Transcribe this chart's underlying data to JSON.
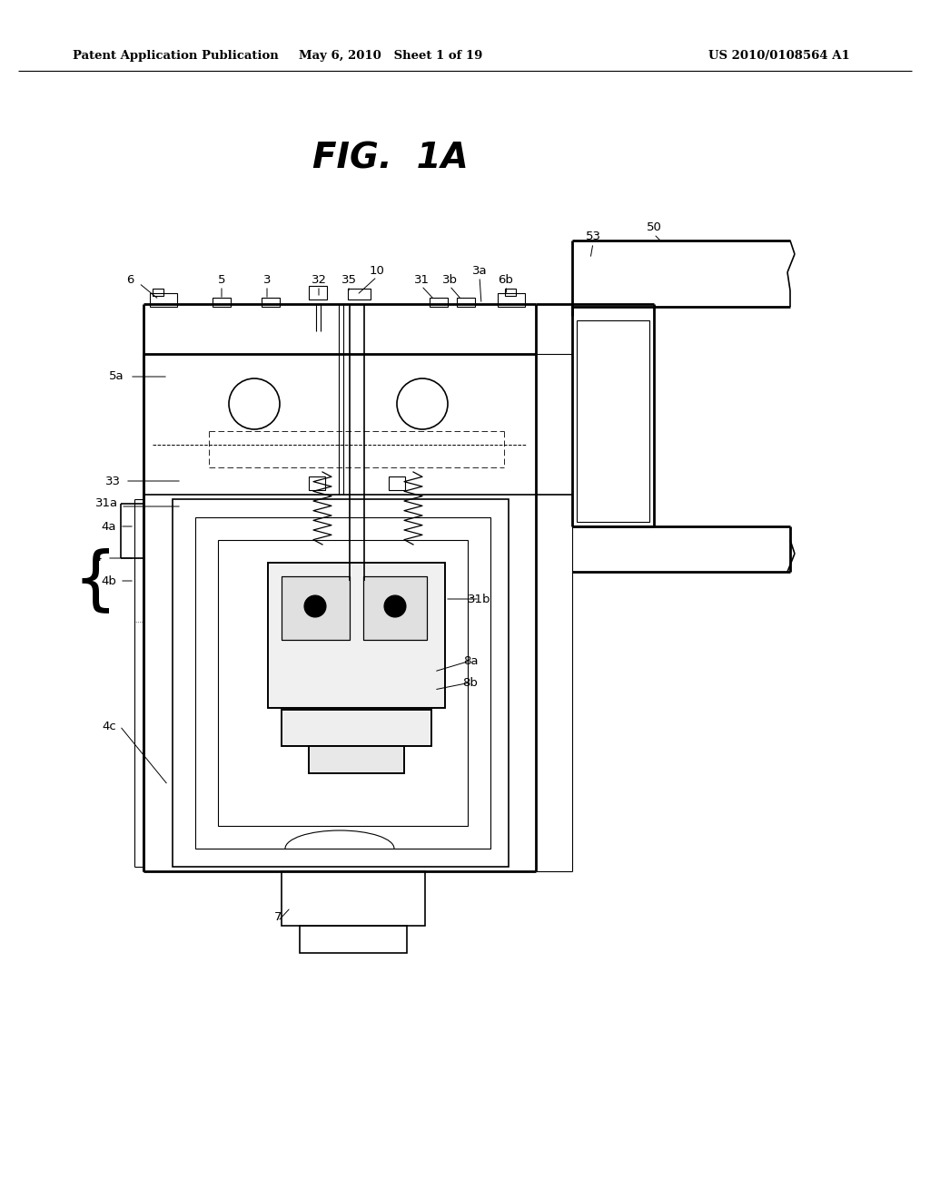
{
  "bg_color": "#ffffff",
  "header_left": "Patent Application Publication",
  "header_mid": "May 6, 2010   Sheet 1 of 19",
  "header_right": "US 2010/0108564 A1",
  "figure_title": "FIG.  1A"
}
